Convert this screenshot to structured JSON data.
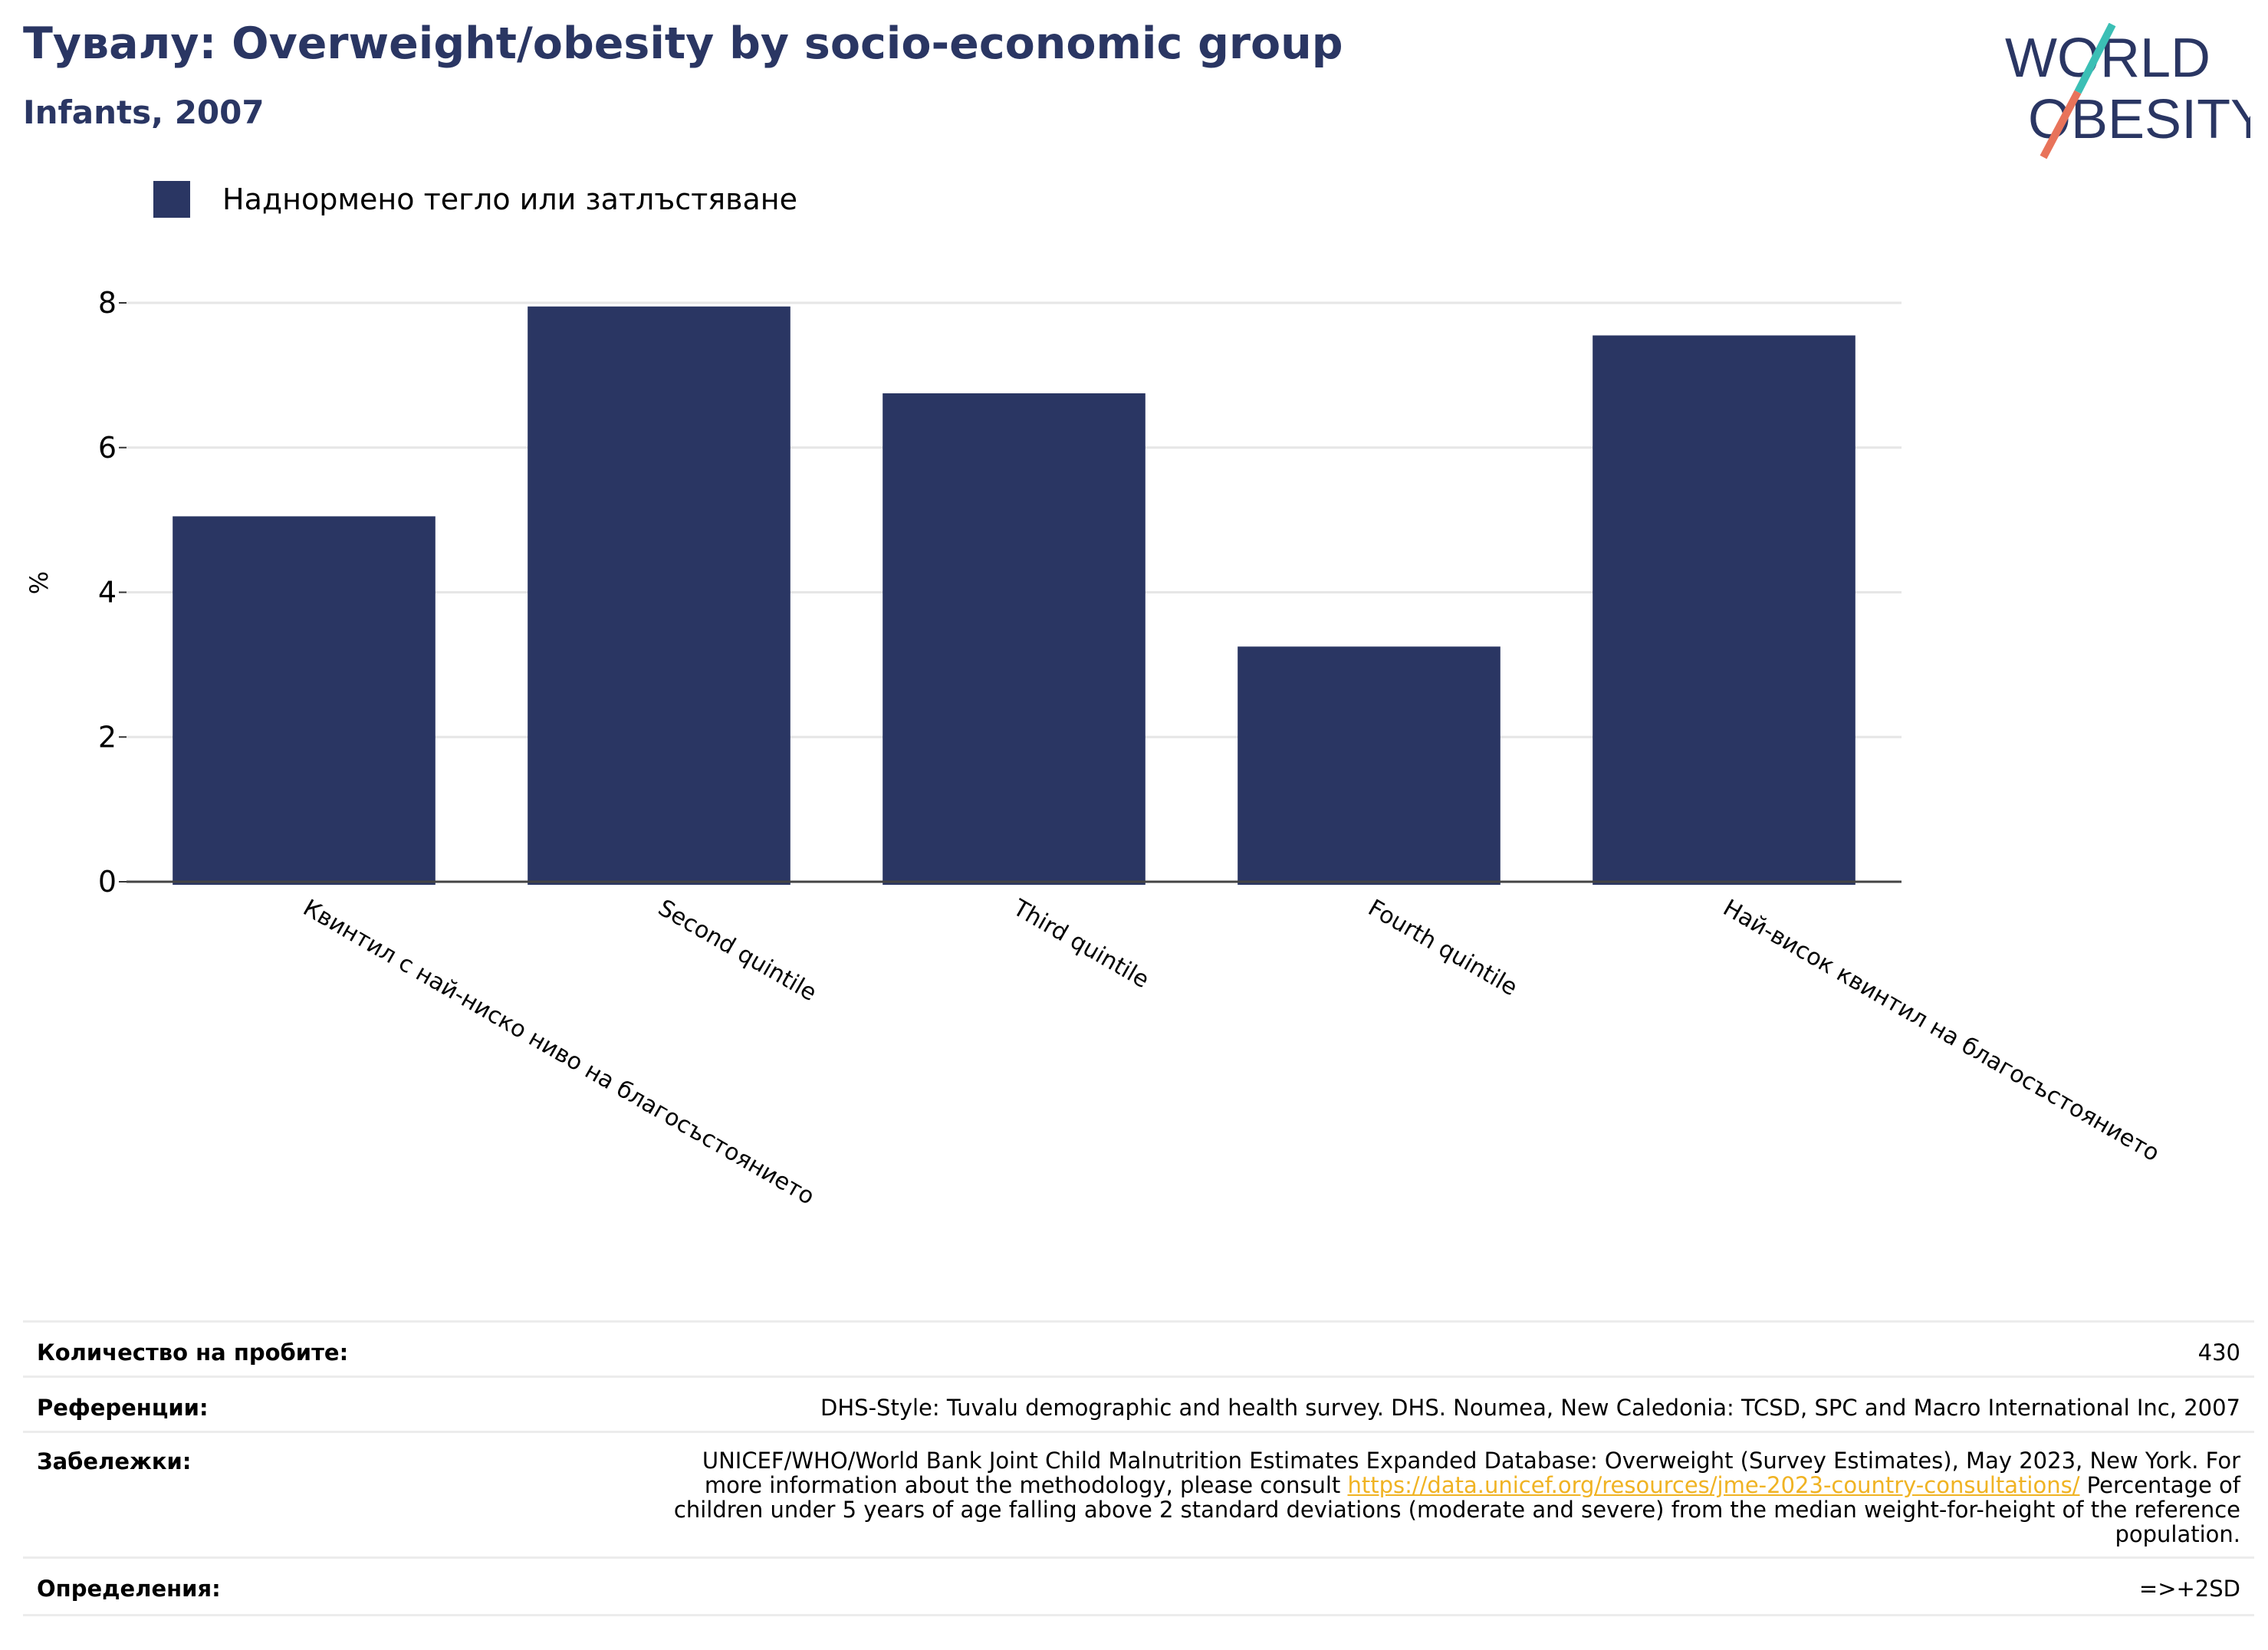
{
  "header": {
    "title": "Тувалу: Overweight/obesity by socio-economic group",
    "subtitle": "Infants, 2007"
  },
  "logo": {
    "line1": "WORLD",
    "line2": "OBESITY",
    "colors": {
      "text": "#2a3663",
      "slash_top": "#3bbfb5",
      "slash_bottom": "#e8735a"
    }
  },
  "legend": {
    "label": "Наднормено тегло или затлъстяване",
    "color": "#2a3663"
  },
  "chart_data": {
    "type": "bar",
    "categories": [
      "Квинтил с най-ниско ниво на благосъстоянието",
      "Second quintile",
      "Third quintile",
      "Fourth quintile",
      "Най-висок квинтил на благосъстоянието"
    ],
    "series": [
      {
        "name": "Наднормено тегло или затлъстяване",
        "values": [
          5.05,
          7.95,
          6.75,
          3.25,
          7.55
        ]
      }
    ],
    "ylabel": "%",
    "xlabel": "",
    "ylim": [
      0,
      8
    ],
    "yticks": [
      0,
      2,
      4,
      6,
      8
    ],
    "grid": true,
    "legend_position": "top-left",
    "bar_color": "#2a3663"
  },
  "footer": {
    "samples_label": "Количество на пробите:",
    "samples_value": "430",
    "references_label": "Референции:",
    "references_value": "DHS-Style: Tuvalu demographic and health survey. DHS. Noumea, New Caledonia: TCSD, SPC and Macro International Inc, 2007",
    "notes_label": "Забележки:",
    "notes_pre": "UNICEF/WHO/World Bank Joint Child Malnutrition Estimates Expanded Database: Overweight (Survey Estimates), May 2023, New York. For more information about the methodology, please consult ",
    "notes_link": "https://data.unicef.org/resources/jme-2023-country-consultations/",
    "notes_post": " Percentage of children under 5 years of age falling above 2 standard deviations (moderate and severe) from the median weight-for-height of the reference population.",
    "definitions_label": "Определения:",
    "definitions_value": "=>+2SD"
  }
}
